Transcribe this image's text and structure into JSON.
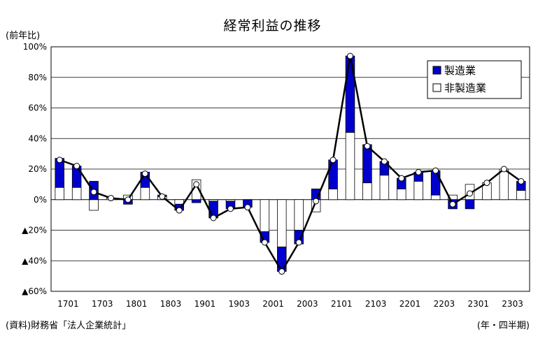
{
  "title": "経常利益の推移",
  "y_unit_label": "(前年比)",
  "x_unit_label": "(年・四半期)",
  "source_note": "(資料)財務省「法人企業統計」",
  "colors": {
    "manufacturing": "#0000cc",
    "non_manufacturing": "#ffffff",
    "total_line": "#000000"
  },
  "chart_data": {
    "type": "bar",
    "stacked": true,
    "title": "経常利益の推移",
    "ylabel": "(前年比)",
    "xlabel": "(年・四半期)",
    "ylim": [
      -60,
      100
    ],
    "yticks": [
      -60,
      -40,
      -20,
      0,
      20,
      40,
      60,
      80,
      100
    ],
    "ytick_labels": [
      "▲60%",
      "▲40%",
      "▲20%",
      "0%",
      "20%",
      "40%",
      "60%",
      "80%",
      "100%"
    ],
    "legend_position": "top-right",
    "categories": [
      "1701",
      "1702",
      "1703",
      "1704",
      "1801",
      "1802",
      "1803",
      "1804",
      "1901",
      "1902",
      "1903",
      "1904",
      "2001",
      "2002",
      "2003",
      "2004",
      "2101",
      "2102",
      "2103",
      "2104",
      "2201",
      "2202",
      "2203",
      "2204",
      "2301",
      "2302",
      "2303",
      "2304"
    ],
    "xtick_labels": [
      "1701",
      "1703",
      "1801",
      "1803",
      "1901",
      "1903",
      "2001",
      "2003",
      "2101",
      "2103",
      "2201",
      "2203",
      "2301",
      "2303"
    ],
    "series": [
      {
        "name": "製造業",
        "values": [
          19,
          14,
          12,
          0,
          -3,
          10,
          1,
          -4,
          -2,
          -11,
          -5,
          -5,
          -7,
          -16,
          -9,
          7,
          19,
          50,
          25,
          9,
          7,
          6,
          16,
          -6,
          -6,
          0,
          0,
          6
        ]
      },
      {
        "name": "非製造業",
        "values": [
          8,
          8,
          -7,
          1,
          3,
          8,
          2,
          -3,
          13,
          -1,
          -1,
          0,
          -21,
          -31,
          -20,
          -8,
          7,
          44,
          11,
          16,
          7,
          12,
          3,
          3,
          10,
          11,
          20,
          6
        ]
      }
    ],
    "total_line": [
      26,
      22,
      5,
      1,
      0,
      17,
      2,
      -7,
      10,
      -12,
      -6,
      -5,
      -28,
      -47,
      -28,
      -1,
      26,
      94,
      35,
      25,
      14,
      18,
      19,
      -3,
      4,
      11,
      20,
      12
    ]
  }
}
